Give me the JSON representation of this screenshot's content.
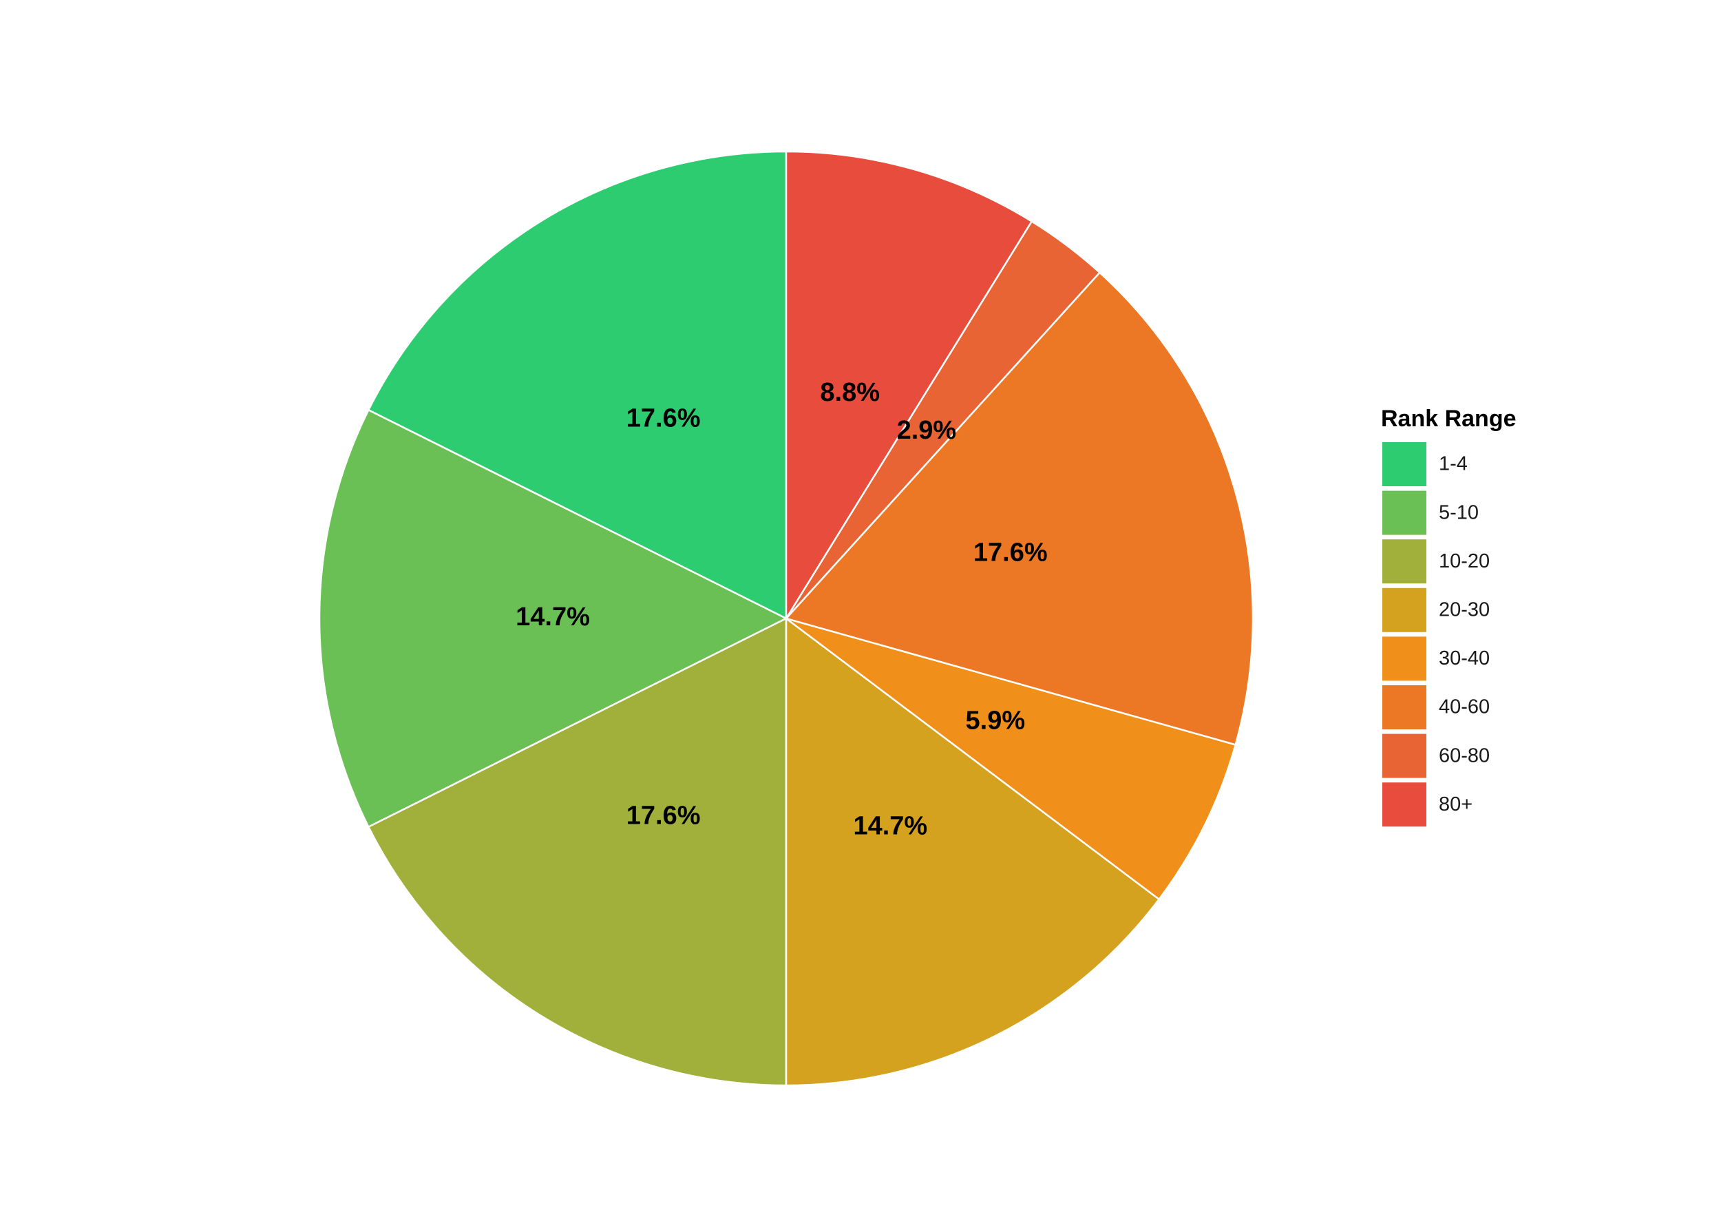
{
  "chart_data": {
    "type": "pie",
    "legend_title": "Rank Range",
    "legend_position": "right",
    "categories": [
      "1-4",
      "5-10",
      "10-20",
      "20-30",
      "30-40",
      "40-60",
      "60-80",
      "80+"
    ],
    "values": [
      17.6,
      14.7,
      17.6,
      14.7,
      5.9,
      17.6,
      2.9,
      8.8
    ],
    "value_labels": [
      "17.6%",
      "14.7%",
      "17.6%",
      "14.7%",
      "5.9%",
      "17.6%",
      "2.9%",
      "8.8%"
    ],
    "colors": [
      "#2ecc71",
      "#6abf55",
      "#a0b03a",
      "#d4a21f",
      "#f0901a",
      "#ec7825",
      "#e86434",
      "#e74c3c"
    ]
  }
}
